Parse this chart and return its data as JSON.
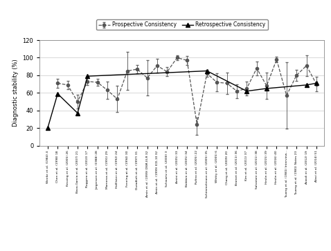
{
  "x_labels": [
    "Weeke et al. (1984) 4",
    "Chen et al. (1998) 18",
    "Kessing et al. (2005) 26",
    "Baca-Garcia et al. (2007) 21",
    "Ruggero et al. (2010) 17",
    "Jorgensen et al. (1988) 28",
    "Marneros et al. (1991) 29",
    "Holllister et al. (1992) 24",
    "Fenning at al. (1994) 30",
    "Duradkeh et al. (1997) 31",
    "Amin et al. (1999) DSM-III-R 32",
    "Amin et al. (1999) ICD-10 32",
    "Schwartz et al. (2000) 3",
    "Amini et al. (2005) 33",
    "Baldwin et al. (2005) 34",
    "Rufino et al. (2005) 22",
    "Schimmelmann et al. (2005) 35",
    "Whitty et al. (2005) 6",
    "Chang et al. (2009) 20",
    "Bromet et al. (2011) 36",
    "Kim et al. (2011) 37",
    "Salvatore et al. (2011) 38",
    "Heslin et al. (2015) 39",
    "Heslin et al. (2016) 40",
    "Tsuang et al. (1981) Interview...",
    "Tsuang et al. (1981) Notes 23",
    "Atwoli et al. (2012) 19",
    "Alavi et al. (2014) 51"
  ],
  "retro_y": [
    20,
    59,
    null,
    37,
    79,
    null,
    null,
    null,
    null,
    null,
    null,
    null,
    null,
    null,
    null,
    null,
    85,
    null,
    null,
    null,
    62,
    null,
    65,
    null,
    null,
    null,
    69,
    71
  ],
  "prosp_y": [
    null,
    71,
    69,
    50,
    73,
    72,
    63,
    53,
    85,
    87,
    77,
    91,
    84,
    100,
    97,
    24,
    82,
    72,
    71,
    62,
    65,
    88,
    68,
    98,
    57,
    80,
    91,
    70
  ],
  "prosp_yerr_lo": [
    0,
    5,
    5,
    8,
    4,
    4,
    10,
    15,
    22,
    5,
    20,
    8,
    5,
    3,
    5,
    12,
    4,
    10,
    12,
    8,
    8,
    8,
    15,
    3,
    38,
    6,
    12,
    8
  ],
  "prosp_yerr_hi": [
    0,
    5,
    5,
    8,
    4,
    4,
    10,
    15,
    22,
    5,
    20,
    8,
    5,
    3,
    5,
    8,
    4,
    10,
    12,
    8,
    8,
    8,
    15,
    3,
    38,
    6,
    12,
    8
  ],
  "ylabel": "Diagnostic stability (%)",
  "ylim": [
    0,
    120
  ],
  "yticks": [
    0,
    20,
    40,
    60,
    80,
    100,
    120
  ],
  "bg_color": "#ffffff",
  "retro_color": "#000000",
  "prosp_color": "#555555",
  "legend_retro": "Retrospective Consistency",
  "legend_prosp": "Prospective Consistency",
  "figwidth": 4.78,
  "figheight": 3.63,
  "dpi": 100
}
